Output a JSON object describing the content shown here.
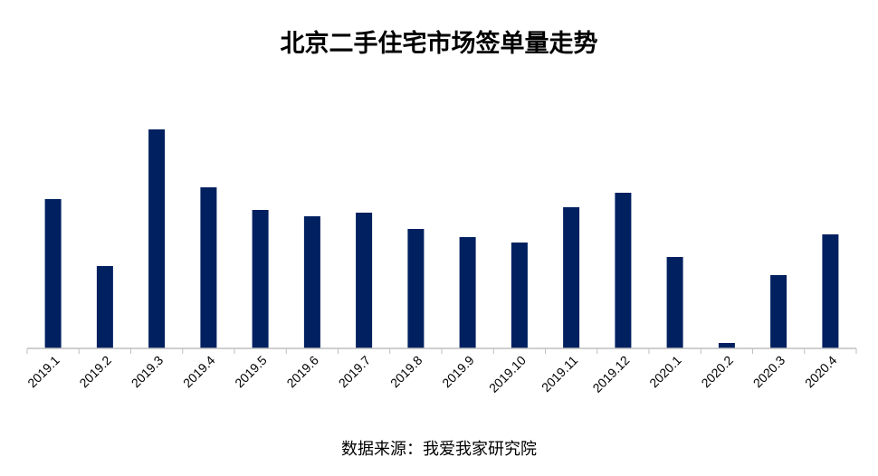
{
  "chart_data": {
    "type": "bar",
    "title": "北京二手住宅市场签单量走势",
    "source": "数据来源：我爱我家研究院",
    "categories": [
      "2019.1",
      "2019.2",
      "2019.3",
      "2019.4",
      "2019.5",
      "2019.6",
      "2019.7",
      "2019.8",
      "2019.9",
      "2019.10",
      "2019.11",
      "2019.12",
      "2020.1",
      "2020.2",
      "2020.3",
      "2020.4"
    ],
    "values": [
      165,
      91,
      242,
      178,
      153,
      146,
      150,
      132,
      123,
      117,
      156,
      172,
      101,
      6,
      81,
      126
    ],
    "ylim": [
      0,
      250
    ],
    "bar_color": "#002060",
    "axis_color": "#bfbfbf",
    "grid": false,
    "legend": "none"
  }
}
